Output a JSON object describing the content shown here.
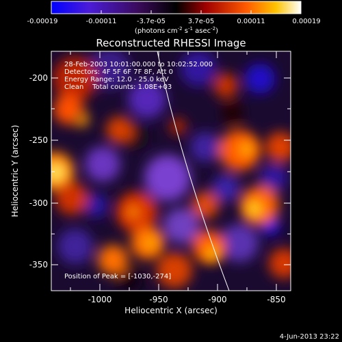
{
  "colorbar": {
    "tick_labels": [
      "-0.00019",
      "-0.00011",
      "-3.7e-05",
      "3.7e-05",
      "0.00011",
      "0.00019"
    ],
    "unit_label": "(photons cm",
    "unit_exp1": "-2",
    "unit_mid": " s",
    "unit_exp2": "-1",
    "unit_mid2": " asec",
    "unit_exp3": "-2",
    "unit_end": ")"
  },
  "plot": {
    "title": "Reconstructed RHESSI Image",
    "info_lines": [
      "28-Feb-2003 10:01:00.000 to 10:02:52.000",
      "Detectors: 4F 5F 6F 7F 8F, Att 0",
      "Energy Range: 12.0 - 25.0 keV",
      "Clean    Total counts: 1.08E+03"
    ],
    "peak_text": "Position of Peak = [-1030,-274]",
    "xlabel": "Heliocentric X (arcsec)",
    "ylabel": "Heliocentric Y (arcsec)",
    "x_ticks": [
      "-1000",
      "-950",
      "-900",
      "-850"
    ],
    "y_ticks": [
      "-200",
      "-250",
      "-300",
      "-350"
    ]
  },
  "footer": {
    "timestamp": "4-Jun-2013 23:22"
  },
  "colors": {
    "background": "#000000",
    "text": "#ffffff",
    "limb": "#ffffff"
  }
}
